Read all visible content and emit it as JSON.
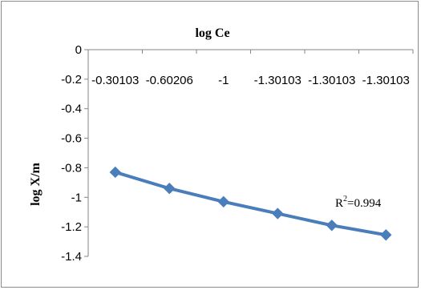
{
  "chart_data": {
    "type": "line",
    "xlabel": "log Ce",
    "ylabel": "log X/m",
    "categories": [
      "-0.30103",
      "-0.60206",
      "-1",
      "-1.30103",
      "-1.30103",
      "-1.30103"
    ],
    "series": [
      {
        "values": [
          -0.83,
          -0.94,
          -1.03,
          -1.11,
          -1.19,
          -1.255
        ],
        "color": "#4a7ebb"
      }
    ],
    "ylim": [
      -1.4,
      0
    ],
    "yticks": [
      "0",
      "-0.2",
      "-0.4",
      "-0.6",
      "-0.8",
      "-1",
      "-1.2",
      "-1.4"
    ],
    "annotation": {
      "prefix": "R",
      "sup": "2",
      "suffix": "=0.994"
    },
    "grid": false,
    "legend": "none",
    "x_axis_position": "top"
  }
}
